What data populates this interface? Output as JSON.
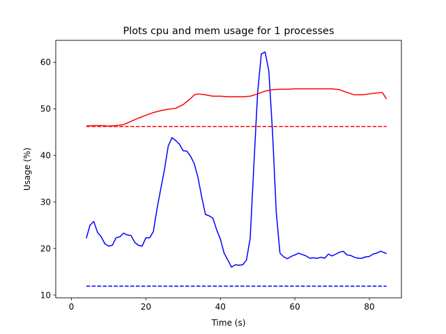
{
  "chart_data": {
    "type": "line",
    "title": "Plots cpu and mem usage for 1 processes",
    "xlabel": "Time (s)",
    "ylabel": "Usage (%)",
    "xlim": [
      -4.2,
      88.6
    ],
    "ylim": [
      9.4,
      64.7
    ],
    "xticks": [
      0,
      20,
      40,
      60,
      80
    ],
    "yticks": [
      10,
      20,
      30,
      40,
      50,
      60
    ],
    "grid": false,
    "legend": "none",
    "series": [
      {
        "color": "#0000ff",
        "style": "solid",
        "x": [
          4,
          5,
          6,
          7,
          8,
          9,
          10,
          11,
          12,
          13,
          14,
          15,
          16,
          17,
          18,
          19,
          20,
          21,
          22,
          23,
          24,
          25,
          26,
          27,
          28,
          29,
          30,
          31,
          32,
          33,
          34,
          35,
          36,
          37,
          38,
          39,
          40,
          41,
          42,
          43,
          44,
          45,
          46,
          47,
          48,
          49,
          50,
          51,
          52,
          53,
          54,
          55,
          56,
          57,
          58,
          59,
          60,
          61,
          62,
          63,
          64,
          65,
          66,
          67,
          68,
          69,
          70,
          71,
          72,
          73,
          74,
          75,
          76,
          77,
          78,
          79,
          80,
          81,
          82,
          83,
          84,
          84.6
        ],
        "values": [
          22.2,
          25.0,
          25.8,
          23.5,
          22.5,
          21.0,
          20.5,
          20.7,
          22.3,
          22.5,
          23.3,
          22.9,
          22.8,
          21.3,
          20.7,
          20.5,
          22.3,
          22.3,
          23.6,
          28.6,
          32.8,
          37.0,
          42.0,
          43.8,
          43.2,
          42.4,
          41.0,
          40.9,
          39.8,
          38.2,
          35.2,
          31.0,
          27.3,
          27.0,
          26.5,
          24.0,
          22.0,
          19.0,
          17.5,
          16.0,
          16.5,
          16.4,
          16.5,
          17.5,
          22.2,
          38.0,
          53.5,
          61.8,
          62.2,
          58.2,
          45.0,
          27.8,
          19.0,
          18.2,
          17.8,
          18.3,
          18.6,
          19.0,
          18.7,
          18.4,
          17.9,
          18.0,
          17.9,
          18.1,
          17.9,
          18.8,
          18.4,
          18.8,
          19.2,
          19.4,
          18.6,
          18.5,
          18.1,
          17.9,
          17.9,
          18.2,
          18.3,
          18.8,
          19.0,
          19.4,
          19.1,
          18.9
        ]
      },
      {
        "color": "#ff0000",
        "style": "solid",
        "x": [
          4,
          6,
          8,
          10,
          12,
          14,
          16,
          18,
          20,
          22,
          24,
          26,
          28,
          30,
          32,
          33,
          34,
          36,
          38,
          40,
          42,
          44,
          46,
          48,
          50,
          52,
          54,
          56,
          58,
          60,
          62,
          64,
          66,
          68,
          70,
          72,
          74,
          76,
          78,
          80,
          82,
          83.5,
          84.6
        ],
        "values": [
          46.3,
          46.4,
          46.4,
          46.3,
          46.4,
          46.6,
          47.3,
          48.0,
          48.6,
          49.2,
          49.6,
          49.9,
          50.1,
          50.9,
          52.2,
          53.0,
          53.2,
          53.0,
          52.7,
          52.7,
          52.6,
          52.6,
          52.6,
          52.7,
          53.2,
          53.8,
          54.1,
          54.2,
          54.2,
          54.3,
          54.3,
          54.3,
          54.3,
          54.3,
          54.3,
          54.1,
          53.5,
          53.0,
          53.0,
          53.2,
          53.4,
          53.5,
          52.1
        ]
      },
      {
        "color": "#ff0000",
        "style": "dashed",
        "x": [
          4,
          84.6
        ],
        "values": [
          46.2,
          46.2
        ]
      },
      {
        "color": "#0000ff",
        "style": "dashed",
        "x": [
          4,
          84.6
        ],
        "values": [
          11.9,
          11.9
        ]
      }
    ]
  }
}
